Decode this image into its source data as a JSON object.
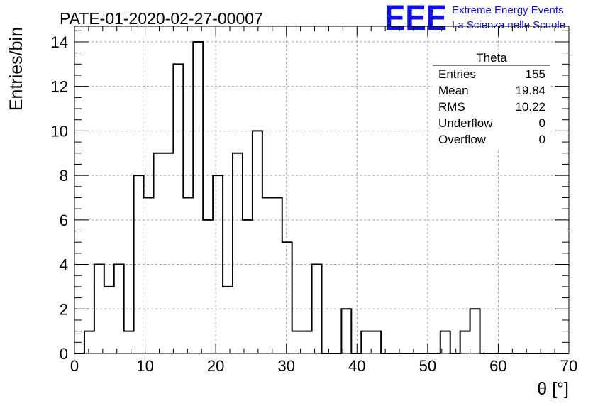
{
  "header": {
    "title": "PATE-01-2020-02-27-00007",
    "logo_text": "EEE",
    "logo_line1": "Extreme Energy Events",
    "logo_line2": "La Scienza nelle Scuole"
  },
  "stats": {
    "name": "Theta",
    "rows": [
      {
        "label": "Entries",
        "value": "155"
      },
      {
        "label": "Mean",
        "value": "19.84"
      },
      {
        "label": "RMS",
        "value": "10.22"
      },
      {
        "label": "Underflow",
        "value": "0"
      },
      {
        "label": "Overflow",
        "value": "0"
      }
    ]
  },
  "chart_data": {
    "type": "histogram",
    "title": "PATE-01-2020-02-27-00007",
    "xlabel": "θ [°]",
    "ylabel": "Entries/bin",
    "xlim": [
      0,
      70
    ],
    "ylim": [
      0,
      14.7
    ],
    "bin_width": 1.4,
    "bin_start": 0,
    "x_ticks": [
      0,
      10,
      20,
      30,
      40,
      50,
      60,
      70
    ],
    "y_ticks": [
      0,
      2,
      4,
      6,
      8,
      10,
      12,
      14
    ],
    "grid": true,
    "values": [
      0,
      1,
      4,
      3,
      4,
      1,
      8,
      7,
      9,
      9,
      13,
      7,
      14,
      6,
      8,
      3,
      9,
      6,
      10,
      7,
      7,
      5,
      1,
      1,
      4,
      0,
      0,
      2,
      0,
      1,
      1,
      0,
      0,
      0,
      0,
      0,
      0,
      1,
      0,
      1,
      2,
      0,
      0,
      0,
      0,
      0,
      0,
      0,
      0,
      0
    ]
  }
}
